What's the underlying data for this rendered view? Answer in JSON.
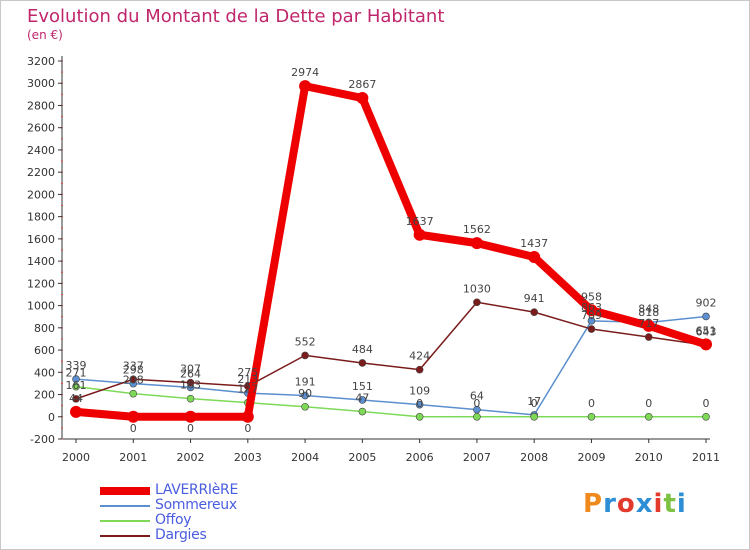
{
  "title": "Evolution du Montant de la Dette par Habitant",
  "subtitle": "(en €)",
  "logo_text": "Proxiti",
  "chart_data": {
    "type": "line",
    "x": [
      "2000",
      "2001",
      "2002",
      "2003",
      "2004",
      "2005",
      "2006",
      "2007",
      "2008",
      "2009",
      "2010",
      "2011"
    ],
    "ylim": [
      -200,
      3200
    ],
    "yticks": [
      -200,
      0,
      200,
      400,
      600,
      800,
      1000,
      1200,
      1400,
      1600,
      1800,
      2000,
      2200,
      2400,
      2600,
      2800,
      3000,
      3200
    ],
    "grid": false,
    "legend_position": "bottom-left",
    "series": [
      {
        "name": "LAVERRIèRE",
        "color": "#ee0000",
        "values": [
          44,
          0,
          0,
          0,
          2974,
          2867,
          1637,
          1562,
          1437,
          958,
          818,
          651
        ],
        "labels": [
          "44",
          "0",
          "0",
          "0",
          "2974",
          "2867",
          "1637",
          "1562",
          "1437",
          "958",
          "818",
          "651"
        ]
      },
      {
        "name": "Sommereux",
        "color": "#5b8fcf",
        "values": [
          339,
          298,
          264,
          213,
          191,
          151,
          109,
          64,
          17,
          863,
          848,
          902
        ],
        "labels": [
          "339",
          "298",
          "264",
          "213",
          "191",
          "151",
          "109",
          "64",
          "17",
          "863",
          "848",
          "902"
        ]
      },
      {
        "name": "Offoy",
        "color": "#7ed957",
        "values": [
          271,
          208,
          163,
          127,
          90,
          47,
          0,
          0,
          0,
          0,
          0,
          0
        ],
        "labels": [
          "271",
          "208",
          "163",
          "127",
          "90",
          "47",
          "0",
          "0",
          "0",
          "0",
          "0",
          "0"
        ]
      },
      {
        "name": "Dargies",
        "color": "#7a1c1c",
        "values": [
          161,
          337,
          307,
          275,
          552,
          484,
          424,
          1030,
          941,
          789,
          717,
          643
        ],
        "labels": [
          "161",
          "337",
          "307",
          "275",
          "552",
          "484",
          "424",
          "1030",
          "941",
          "789",
          "717",
          "643"
        ]
      }
    ]
  }
}
